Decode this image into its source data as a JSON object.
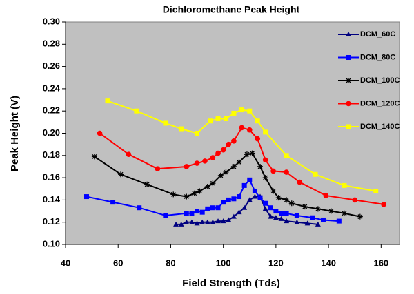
{
  "chart_data": {
    "type": "line",
    "title": "Dichloromethane Peak Height",
    "x_label": "Field Strength (Tds)",
    "y_label": "Peak Height (V)",
    "xlim": [
      40,
      167
    ],
    "xticks": [
      40,
      60,
      80,
      100,
      120,
      140,
      160
    ],
    "ylim": [
      0.1,
      0.3
    ],
    "yticks": [
      {
        "value": 0.1,
        "label": "0.10"
      },
      0.12,
      0.14,
      0.16,
      0.18,
      {
        "value": 0.2,
        "label": "0.20"
      },
      0.22,
      0.24,
      0.26,
      0.28,
      {
        "value": 0.3,
        "label": "0.30"
      }
    ],
    "plot_background": "#c0c0c0",
    "legend": "right",
    "series": [
      {
        "name": "DCM_60C",
        "color": "#000080",
        "marker": "triangle",
        "x": [
          82,
          84,
          86,
          88,
          90,
          92,
          94,
          96,
          98,
          100,
          102,
          104,
          106,
          108,
          110,
          112,
          114,
          116,
          118,
          120,
          122,
          124,
          128,
          132,
          136
        ],
        "values": [
          0.118,
          0.118,
          0.12,
          0.12,
          0.119,
          0.12,
          0.12,
          0.12,
          0.121,
          0.121,
          0.122,
          0.125,
          0.129,
          0.133,
          0.14,
          0.143,
          0.143,
          0.132,
          0.125,
          0.124,
          0.123,
          0.121,
          0.12,
          0.119,
          0.118
        ]
      },
      {
        "name": "DCM_80C",
        "color": "#0000ff",
        "marker": "square",
        "x": [
          48,
          58,
          68,
          78,
          86,
          88,
          90,
          92,
          94,
          96,
          98,
          100,
          102,
          104,
          106,
          108,
          110,
          112,
          114,
          116,
          118,
          120,
          122,
          124,
          128,
          134,
          138,
          144
        ],
        "values": [
          0.143,
          0.138,
          0.133,
          0.126,
          0.128,
          0.128,
          0.13,
          0.129,
          0.132,
          0.133,
          0.133,
          0.138,
          0.14,
          0.141,
          0.143,
          0.153,
          0.158,
          0.148,
          0.142,
          0.137,
          0.133,
          0.13,
          0.128,
          0.128,
          0.126,
          0.124,
          0.122,
          0.121
        ]
      },
      {
        "name": "DCM_100C",
        "color": "#000000",
        "marker": "star",
        "x": [
          51,
          61,
          71,
          81,
          86,
          89,
          91,
          94,
          96,
          99,
          101,
          104,
          106,
          109,
          111,
          114,
          116,
          119,
          121,
          124,
          126,
          131,
          136,
          141,
          146,
          152
        ],
        "values": [
          0.179,
          0.163,
          0.154,
          0.145,
          0.143,
          0.146,
          0.148,
          0.152,
          0.155,
          0.162,
          0.165,
          0.17,
          0.174,
          0.181,
          0.182,
          0.17,
          0.16,
          0.148,
          0.142,
          0.14,
          0.137,
          0.134,
          0.132,
          0.13,
          0.128,
          0.125
        ]
      },
      {
        "name": "DCM_120C",
        "color": "#ff0000",
        "marker": "circle",
        "x": [
          53,
          64,
          75,
          86,
          90,
          93,
          96,
          98,
          100,
          102,
          104,
          107,
          110,
          113,
          116,
          119,
          124,
          129,
          139,
          150,
          161
        ],
        "values": [
          0.2,
          0.181,
          0.168,
          0.17,
          0.173,
          0.175,
          0.178,
          0.182,
          0.185,
          0.19,
          0.193,
          0.205,
          0.203,
          0.195,
          0.176,
          0.166,
          0.165,
          0.156,
          0.144,
          0.14,
          0.136
        ]
      },
      {
        "name": "DCM_140C",
        "color": "#ffff00",
        "marker": "square",
        "x": [
          56,
          67,
          78,
          84,
          90,
          95,
          98,
          101,
          104,
          107,
          110,
          113,
          116,
          124,
          135,
          146,
          158
        ],
        "values": [
          0.229,
          0.22,
          0.209,
          0.204,
          0.2,
          0.211,
          0.213,
          0.213,
          0.218,
          0.221,
          0.22,
          0.211,
          0.201,
          0.18,
          0.163,
          0.153,
          0.148
        ]
      }
    ]
  }
}
